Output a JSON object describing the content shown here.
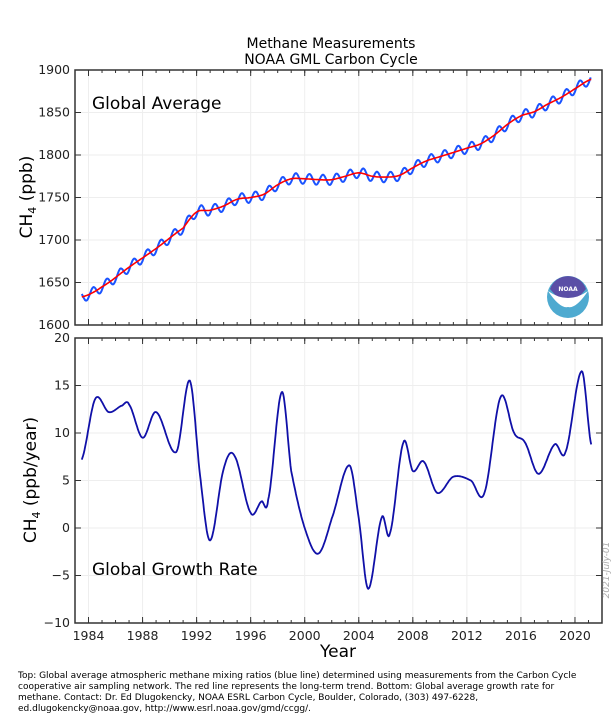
{
  "chart_data": [
    {
      "type": "line",
      "title": "Methane Measurements",
      "subtitle": "NOAA GML Carbon Cycle",
      "annotation": "Global Average",
      "ylabel_main": "CH",
      "ylabel_sub": "4",
      "ylabel_unit": " (ppb)",
      "xlim": [
        1983,
        2022
      ],
      "ylim": [
        1600,
        1900
      ],
      "yticks": [
        "1600",
        "1650",
        "1700",
        "1750",
        "1800",
        "1850",
        "1900"
      ],
      "grid": true,
      "series": [
        {
          "role": "monthly global average",
          "color": "#1a53ff",
          "seasonal_amplitude_ppb": 6
        },
        {
          "role": "long-term trend",
          "color": "#ff0000",
          "x": [
            1983.5,
            1985,
            1987,
            1989,
            1991,
            1992,
            1993,
            1994,
            1995,
            1996,
            1997,
            1998,
            1999,
            2000,
            2001,
            2002,
            2003,
            2004,
            2005,
            2006,
            2007,
            2008,
            2009,
            2010,
            2011,
            2012,
            2013,
            2014,
            2015,
            2016,
            2017,
            2018,
            2019,
            2020,
            2021.2
          ],
          "y": [
            1633,
            1645,
            1668,
            1690,
            1714,
            1733,
            1735,
            1740,
            1748,
            1750,
            1754,
            1765,
            1772,
            1772,
            1771,
            1771,
            1775,
            1779,
            1775,
            1774,
            1776,
            1785,
            1793,
            1798,
            1803,
            1808,
            1813,
            1823,
            1836,
            1846,
            1851,
            1860,
            1868,
            1878,
            1889
          ]
        }
      ]
    },
    {
      "type": "line",
      "annotation": "Global Growth Rate",
      "xlabel": "Year",
      "ylabel_main": "CH",
      "ylabel_sub": "4",
      "ylabel_unit": " (ppb/year)",
      "xlim": [
        1983,
        2022
      ],
      "ylim": [
        -10,
        20
      ],
      "xticks": [
        "1984",
        "1988",
        "1992",
        "1996",
        "2000",
        "2004",
        "2008",
        "2012",
        "2016",
        "2020"
      ],
      "yticks": [
        "−10",
        "−5",
        "0",
        "5",
        "10",
        "15",
        "20"
      ],
      "grid": true,
      "series": [
        {
          "role": "growth rate",
          "color": "#1010a8",
          "x": [
            1983.5,
            1984.5,
            1985.5,
            1986.5,
            1987,
            1988,
            1989,
            1990.5,
            1991.5,
            1992.3,
            1993,
            1994,
            1994.8,
            1996,
            1996.8,
            1997.3,
            1998.3,
            1999,
            2000,
            2001,
            2002,
            2003.3,
            2004,
            2004.7,
            2005.7,
            2006.3,
            2007.3,
            2008,
            2008.8,
            2009.8,
            2011,
            2012.3,
            2013.3,
            2014.5,
            2015.5,
            2016.3,
            2017.3,
            2018.5,
            2019.3,
            2020.5,
            2021.2
          ],
          "y": [
            7.2,
            13.6,
            12.2,
            12.9,
            13,
            9.5,
            12.2,
            8,
            15.5,
            5,
            -1.3,
            6.2,
            7.6,
            1.6,
            2.8,
            3,
            14.3,
            6,
            0,
            -2.7,
            1,
            6.6,
            1,
            -6.4,
            1.1,
            -0.6,
            9,
            6,
            7,
            3.7,
            5.4,
            5,
            3.7,
            13.8,
            10,
            9,
            5.7,
            8.8,
            8,
            16.5,
            8.8
          ]
        }
      ]
    }
  ],
  "logo": {
    "text": "NOAA",
    "colors": [
      "#5a4ea6",
      "#4eaad0"
    ]
  },
  "date_stamp": "2021-July-01",
  "caption": "Top:  Global average atmospheric methane mixing ratios (blue line) determined using measurements from the Carbon Cycle cooperative air sampling network.  The red line represents the long-term trend.  Bottom:  Global average growth rate for methane.  Contact:  Dr. Ed Dlugokencky, NOAA ESRL Carbon Cycle, Boulder, Colorado, (303) 497-6228, ed.dlugokencky@noaa.gov, http://www.esrl.noaa.gov/gmd/ccgg/."
}
